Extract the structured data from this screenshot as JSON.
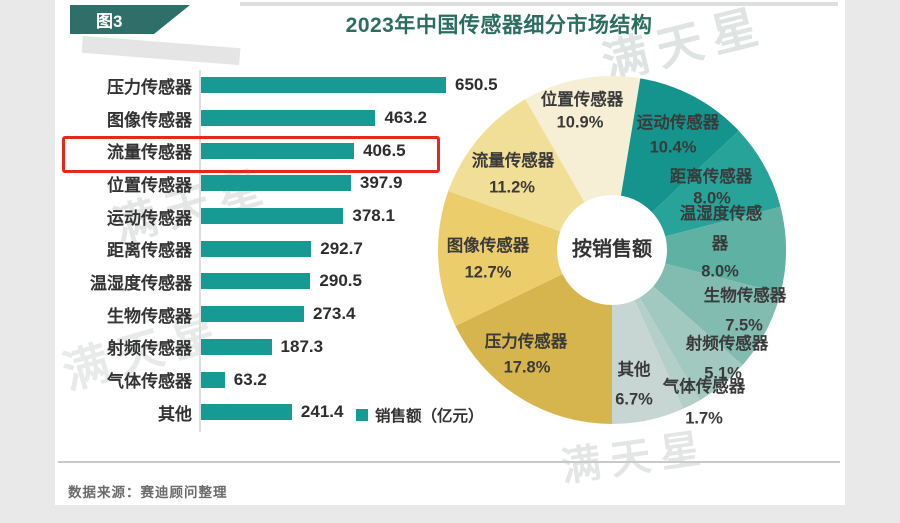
{
  "page": {
    "figure_tag": "图3",
    "title": "2023年中国传感器细分市场结构",
    "center_label": "按销售额",
    "legend_label": "销售额（亿元）",
    "source_note": "数据来源：赛迪顾问整理",
    "watermark_text": "满天星",
    "highlighted_row": "流量传感器"
  },
  "colors": {
    "bar_fill": "#189a94",
    "banner_bg": "#2f6f6a",
    "title_text": "#2b6e60",
    "highlight_border": "#e7271c"
  },
  "chart_data": [
    {
      "type": "bar",
      "orientation": "horizontal",
      "title": "2023年中国传感器细分市场结构",
      "legend": "销售额（亿元）",
      "unit": "亿元",
      "categories": [
        "压力传感器",
        "图像传感器",
        "流量传感器",
        "位置传感器",
        "运动传感器",
        "距离传感器",
        "温湿度传感器",
        "生物传感器",
        "射频传感器",
        "气体传感器",
        "其他"
      ],
      "values": [
        650.5,
        463.2,
        406.5,
        397.9,
        378.1,
        292.7,
        290.5,
        273.4,
        187.3,
        63.2,
        241.4
      ],
      "highlighted_category": "流量传感器",
      "xlim": [
        0,
        700
      ],
      "grid": false
    },
    {
      "type": "pie",
      "title": "按销售额",
      "donut": true,
      "start_angle_deg_from_north_cw": 180,
      "direction": "clockwise",
      "slices": [
        {
          "label": "压力传感器",
          "pct": 17.8,
          "color": "#d7b54e"
        },
        {
          "label": "图像传感器",
          "pct": 12.7,
          "color": "#ebcd6c"
        },
        {
          "label": "流量传感器",
          "pct": 11.2,
          "color": "#f2df97"
        },
        {
          "label": "位置传感器",
          "pct": 10.9,
          "color": "#f6efd5"
        },
        {
          "label": "运动传感器",
          "pct": 10.4,
          "color": "#14948d"
        },
        {
          "label": "距离传感器",
          "pct": 8.0,
          "color": "#27a39a"
        },
        {
          "label": "温湿度传感器",
          "pct": 8.0,
          "color": "#5fb1a4"
        },
        {
          "label": "生物传感器",
          "pct": 7.5,
          "color": "#82bcb0"
        },
        {
          "label": "射频传感器",
          "pct": 5.1,
          "color": "#a2c9c0"
        },
        {
          "label": "气体传感器",
          "pct": 1.7,
          "color": "#b4cfc8"
        },
        {
          "label": "其他",
          "pct": 6.7,
          "color": "#c7d6d3"
        }
      ]
    }
  ]
}
